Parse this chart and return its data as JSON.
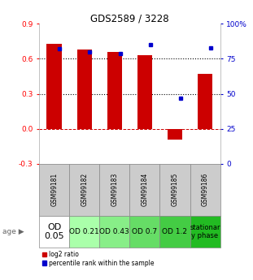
{
  "title": "GDS2589 / 3228",
  "samples": [
    "GSM99181",
    "GSM99182",
    "GSM99183",
    "GSM99184",
    "GSM99185",
    "GSM99186"
  ],
  "log2_ratio": [
    0.73,
    0.68,
    0.66,
    0.63,
    -0.09,
    0.47
  ],
  "percentile_rank_pct": [
    82,
    80,
    79,
    85,
    47,
    83
  ],
  "bar_color": "#cc0000",
  "dot_color": "#0000cc",
  "ylim_left": [
    -0.3,
    0.9
  ],
  "ylim_right": [
    0,
    100
  ],
  "yticks_left": [
    -0.3,
    0.0,
    0.3,
    0.6,
    0.9
  ],
  "yticks_right": [
    0,
    25,
    50,
    75,
    100
  ],
  "ytick_labels_right": [
    "0",
    "25",
    "50",
    "75",
    "100%"
  ],
  "hline_y": 0.0,
  "dotted_lines": [
    0.3,
    0.6
  ],
  "age_labels": [
    "OD\n0.05",
    "OD 0.21",
    "OD 0.43",
    "OD 0.7",
    "OD 1.2",
    "stationar\ny phase"
  ],
  "age_colors": [
    "#ffffff",
    "#aaffaa",
    "#88ee88",
    "#66dd66",
    "#44cc44",
    "#22bb22"
  ],
  "legend_red": "log2 ratio",
  "legend_blue": "percentile rank within the sample",
  "bar_width": 0.5
}
